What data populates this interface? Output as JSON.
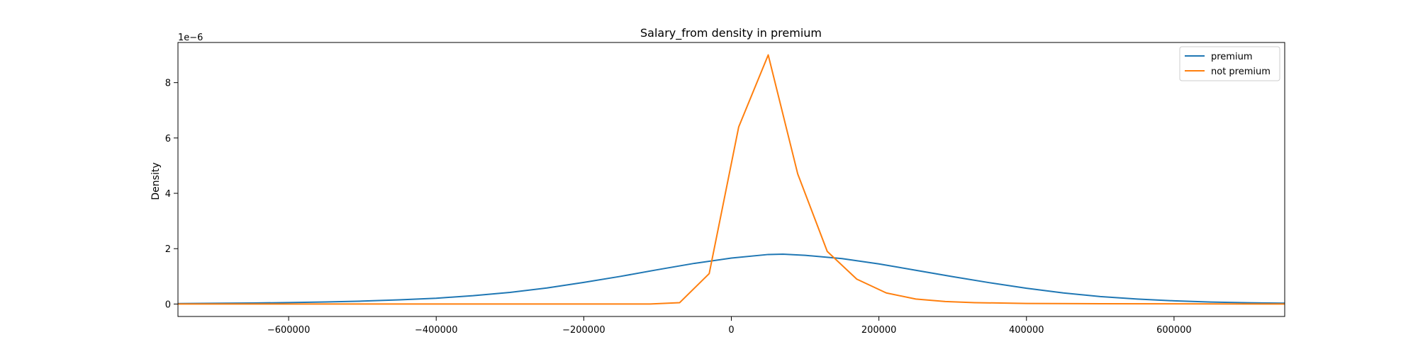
{
  "chart_data": {
    "type": "line",
    "title": "Salary_from density in premium",
    "xlabel": "",
    "ylabel": "Density",
    "y_scale_label": "1e−6",
    "xlim": [
      -750000,
      750000
    ],
    "ylim": [
      -0.45,
      9.45
    ],
    "x_ticks": [
      -600000,
      -400000,
      -200000,
      0,
      200000,
      400000,
      600000
    ],
    "x_tick_labels": [
      "−600000",
      "−400000",
      "−200000",
      "0",
      "200000",
      "400000",
      "600000"
    ],
    "y_ticks": [
      0,
      2,
      4,
      6,
      8
    ],
    "y_tick_labels": [
      "0",
      "2",
      "4",
      "6",
      "8"
    ],
    "grid": false,
    "legend_position": "top-right",
    "series": [
      {
        "name": "premium",
        "color": "#1f77b4",
        "points": [
          [
            -750000,
            0.018
          ],
          [
            -700000,
            0.025
          ],
          [
            -650000,
            0.036
          ],
          [
            -600000,
            0.052
          ],
          [
            -550000,
            0.075
          ],
          [
            -500000,
            0.105
          ],
          [
            -450000,
            0.15
          ],
          [
            -400000,
            0.21
          ],
          [
            -350000,
            0.3
          ],
          [
            -300000,
            0.42
          ],
          [
            -250000,
            0.58
          ],
          [
            -200000,
            0.78
          ],
          [
            -150000,
            1.0
          ],
          [
            -100000,
            1.24
          ],
          [
            -50000,
            1.47
          ],
          [
            0,
            1.66
          ],
          [
            50000,
            1.79
          ],
          [
            70000,
            1.8
          ],
          [
            100000,
            1.76
          ],
          [
            150000,
            1.64
          ],
          [
            200000,
            1.45
          ],
          [
            250000,
            1.22
          ],
          [
            300000,
            0.99
          ],
          [
            350000,
            0.77
          ],
          [
            400000,
            0.57
          ],
          [
            450000,
            0.4
          ],
          [
            500000,
            0.27
          ],
          [
            550000,
            0.18
          ],
          [
            600000,
            0.115
          ],
          [
            650000,
            0.072
          ],
          [
            700000,
            0.045
          ],
          [
            750000,
            0.028
          ]
        ]
      },
      {
        "name": "not premium",
        "color": "#ff7f0e",
        "points": [
          [
            -750000,
            0.0
          ],
          [
            -110000,
            0.0
          ],
          [
            -70000,
            0.05
          ],
          [
            -30000,
            1.1
          ],
          [
            10000,
            6.4
          ],
          [
            50000,
            9.0
          ],
          [
            90000,
            4.7
          ],
          [
            130000,
            1.9
          ],
          [
            170000,
            0.9
          ],
          [
            210000,
            0.4
          ],
          [
            250000,
            0.18
          ],
          [
            290000,
            0.09
          ],
          [
            330000,
            0.05
          ],
          [
            400000,
            0.02
          ],
          [
            500000,
            0.01
          ],
          [
            750000,
            0.0
          ]
        ]
      }
    ]
  }
}
